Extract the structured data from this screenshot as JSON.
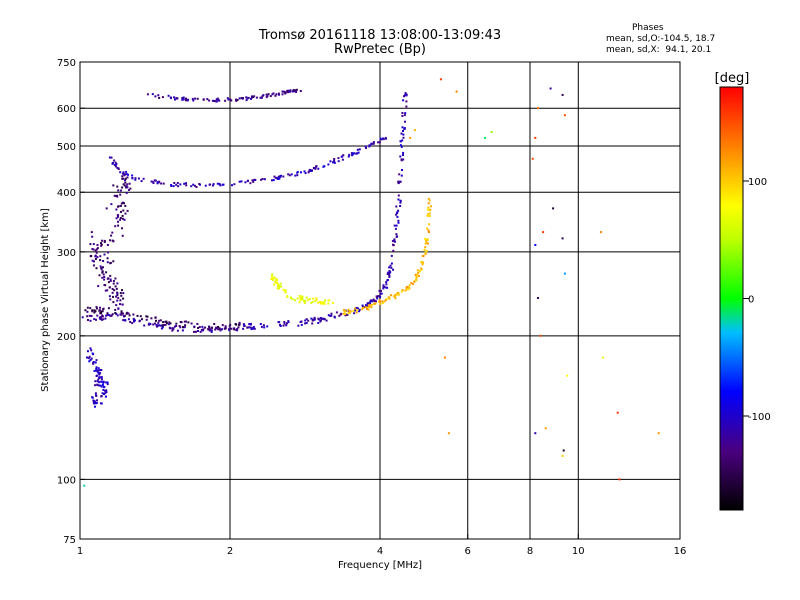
{
  "chart_data": {
    "type": "scatter",
    "title": "Tromsø 20161118 13:08:00-13:09:43",
    "subtitle": "RwPretec (Bp)",
    "xlabel": "Frequency [MHz]",
    "ylabel": "Stationary phase Virtual Height [km]",
    "x_scale": "log",
    "y_scale": "log",
    "xlim": [
      1,
      16
    ],
    "ylim": [
      75,
      750
    ],
    "x_ticks": [
      {
        "value": 1,
        "label": "1"
      },
      {
        "value": 2,
        "label": "2"
      },
      {
        "value": 4,
        "label": "4"
      },
      {
        "value": 6,
        "label": "6"
      },
      {
        "value": 8,
        "label": "8"
      },
      {
        "value": 10,
        "label": "10"
      },
      {
        "value": 16,
        "label": "16"
      }
    ],
    "x_gridlines": [
      2,
      4,
      6,
      8,
      10
    ],
    "y_ticks": [
      {
        "value": 75,
        "label": "75"
      },
      {
        "value": 100,
        "label": "100"
      },
      {
        "value": 200,
        "label": "200"
      },
      {
        "value": 300,
        "label": "300"
      },
      {
        "value": 400,
        "label": "400"
      },
      {
        "value": 500,
        "label": "500"
      },
      {
        "value": 600,
        "label": "600"
      },
      {
        "value": 750,
        "label": "750"
      }
    ],
    "y_gridlines": [
      100,
      200,
      300,
      400,
      500,
      600
    ],
    "legend": {
      "title": "Phases",
      "line1": "mean, sd,O:-104.5, 18.7",
      "line2": "mean, sd,X:  94.1, 20.1"
    },
    "colorbar": {
      "label": "[deg]",
      "range": [
        -180,
        180
      ],
      "ticks": [
        {
          "value": 100,
          "label": "100"
        },
        {
          "value": 0,
          "label": "0"
        },
        {
          "value": -100,
          "label": "-100"
        }
      ]
    },
    "traces": [
      {
        "points": [
          [
            1.02,
            217
          ],
          [
            1.1,
            218
          ],
          [
            1.2,
            220
          ],
          [
            1.3,
            214
          ],
          [
            1.45,
            210
          ],
          [
            1.6,
            207
          ],
          [
            1.8,
            206
          ],
          [
            2.0,
            208
          ],
          [
            2.2,
            209
          ],
          [
            2.5,
            211
          ],
          [
            2.8,
            213
          ],
          [
            3.0,
            216
          ],
          [
            3.2,
            220
          ],
          [
            3.5,
            225
          ],
          [
            3.8,
            233
          ],
          [
            4.0,
            244
          ],
          [
            4.15,
            262
          ],
          [
            4.25,
            290
          ],
          [
            4.32,
            340
          ],
          [
            4.38,
            400
          ],
          [
            4.42,
            480
          ],
          [
            4.46,
            560
          ],
          [
            4.5,
            650
          ]
        ],
        "phase": -115,
        "spread": 0.018
      },
      {
        "points": [
          [
            1.03,
            228
          ],
          [
            1.1,
            226
          ],
          [
            1.2,
            224
          ],
          [
            1.35,
            217
          ],
          [
            1.5,
            213
          ],
          [
            1.7,
            210
          ],
          [
            1.9,
            209
          ],
          [
            2.1,
            210
          ]
        ],
        "phase": -145,
        "spread": 0.02
      },
      {
        "points": [
          [
            3.4,
            224
          ],
          [
            3.6,
            226
          ],
          [
            3.9,
            232
          ],
          [
            4.2,
            240
          ],
          [
            4.5,
            250
          ],
          [
            4.7,
            260
          ],
          [
            4.85,
            280
          ],
          [
            4.95,
            310
          ],
          [
            5.0,
            350
          ],
          [
            5.05,
            390
          ]
        ],
        "phase": 105,
        "spread": 0.015
      },
      {
        "points": [
          [
            2.4,
            268
          ],
          [
            2.5,
            255
          ],
          [
            2.6,
            244
          ],
          [
            2.8,
            238
          ],
          [
            3.0,
            236
          ],
          [
            3.2,
            235
          ]
        ],
        "phase": 70,
        "spread": 0.02
      },
      {
        "points": [
          [
            1.15,
            470
          ],
          [
            1.2,
            445
          ],
          [
            1.3,
            425
          ],
          [
            1.5,
            416
          ],
          [
            1.7,
            414
          ],
          [
            2.0,
            416
          ],
          [
            2.3,
            422
          ],
          [
            2.6,
            432
          ],
          [
            2.9,
            445
          ],
          [
            3.2,
            462
          ],
          [
            3.5,
            480
          ],
          [
            3.8,
            500
          ],
          [
            4.1,
            520
          ]
        ],
        "phase": -110,
        "spread": 0.012
      },
      {
        "points": [
          [
            1.35,
            640
          ],
          [
            1.6,
            628
          ],
          [
            1.8,
            623
          ],
          [
            2.0,
            625
          ],
          [
            2.2,
            630
          ],
          [
            2.4,
            638
          ],
          [
            2.6,
            648
          ],
          [
            2.8,
            655
          ]
        ],
        "phase": -125,
        "spread": 0.01
      },
      {
        "points": [
          [
            1.06,
            320
          ],
          [
            1.08,
            280
          ],
          [
            1.12,
            260
          ],
          [
            1.16,
            245
          ],
          [
            1.2,
            235
          ],
          [
            1.15,
            270
          ],
          [
            1.1,
            300
          ],
          [
            1.18,
            330
          ],
          [
            1.22,
            360
          ],
          [
            1.2,
            400
          ],
          [
            1.25,
            420
          ],
          [
            1.12,
            380
          ]
        ],
        "phase": -135,
        "spread": 0.05
      },
      {
        "points": [
          [
            1.04,
            185
          ],
          [
            1.07,
            175
          ],
          [
            1.1,
            160
          ],
          [
            1.12,
            150
          ],
          [
            1.06,
            145
          ],
          [
            1.09,
            170
          ],
          [
            1.13,
            158
          ]
        ],
        "phase": -105,
        "spread": 0.03
      }
    ],
    "scattered_points": [
      [
        1.02,
        97,
        -20
      ],
      [
        4.6,
        520,
        120
      ],
      [
        4.7,
        540,
        110
      ],
      [
        5.3,
        690,
        160
      ],
      [
        5.7,
        650,
        130
      ],
      [
        6.5,
        520,
        -10
      ],
      [
        6.7,
        535,
        40
      ],
      [
        8.1,
        470,
        150
      ],
      [
        8.2,
        520,
        160
      ],
      [
        8.3,
        600,
        140
      ],
      [
        8.8,
        660,
        -120
      ],
      [
        9.3,
        640,
        -150
      ],
      [
        9.4,
        580,
        150
      ],
      [
        8.5,
        330,
        160
      ],
      [
        8.9,
        370,
        -160
      ],
      [
        9.3,
        320,
        -150
      ],
      [
        8.2,
        310,
        -80
      ],
      [
        9.4,
        270,
        -40
      ],
      [
        8.3,
        240,
        -140
      ],
      [
        8.4,
        200,
        150
      ],
      [
        5.4,
        180,
        130
      ],
      [
        5.5,
        125,
        120
      ],
      [
        8.2,
        125,
        -110
      ],
      [
        8.6,
        128,
        120
      ],
      [
        9.3,
        112,
        100
      ],
      [
        9.35,
        115,
        -170
      ],
      [
        9.5,
        165,
        80
      ],
      [
        11.2,
        180,
        70
      ],
      [
        12.0,
        138,
        160
      ],
      [
        12.1,
        100,
        160
      ],
      [
        14.5,
        125,
        120
      ],
      [
        11.1,
        330,
        130
      ]
    ]
  }
}
